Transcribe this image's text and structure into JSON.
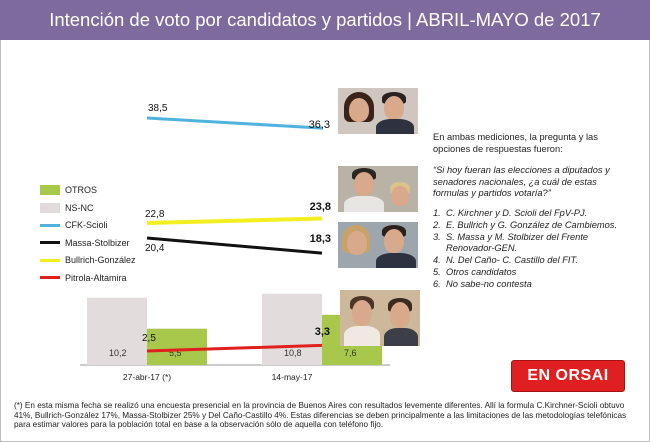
{
  "header": {
    "title": "Intención de voto por candidatos y partidos | ABRIL-MAYO de 2017"
  },
  "chart_data": {
    "type": "bar",
    "categories": [
      "27-abr-17 (*)",
      "14-may-17"
    ],
    "bar_series": [
      {
        "name": "NS-NC",
        "values": [
          10.2,
          10.8
        ],
        "color": "#e3dcdc"
      },
      {
        "name": "OTROS",
        "values": [
          5.5,
          7.6
        ],
        "color": "#a7c84a"
      }
    ],
    "line_series": [
      {
        "name": "CFK-Scioli",
        "values": [
          38.5,
          36.3
        ],
        "color": "#4fb3dd"
      },
      {
        "name": "Bullrich-González",
        "values": [
          22.8,
          23.8
        ],
        "color": "#f2ee1f"
      },
      {
        "name": "Massa-Stolbizer",
        "values": [
          20.4,
          18.3
        ],
        "color": "#111111"
      },
      {
        "name": "Pitrola-Altamira",
        "values": [
          2.5,
          3.3
        ],
        "color": "#e0201c"
      }
    ],
    "labels": {
      "ns_nc": [
        "10,2",
        "10,8"
      ],
      "otros": [
        "5,5",
        "7,6"
      ],
      "cfk": [
        "38,5",
        "36,3"
      ],
      "bullrich": [
        "22,8",
        "23,8"
      ],
      "massa": [
        "20,4",
        "18,3"
      ],
      "pitrola": [
        "2,5",
        "3,3"
      ]
    },
    "legend": [
      "OTROS",
      "NS-NC",
      "CFK-Scioli",
      "Massa-Stolbizer",
      "Bullrich-González",
      "Pitrola-Altamira"
    ],
    "legend_position": "left"
  },
  "photos": [
    {
      "name": "photo-kirchner-scioli"
    },
    {
      "name": "photo-bullrich-gonzalez"
    },
    {
      "name": "photo-massa-stolbizer"
    },
    {
      "name": "photo-delcano-castillo"
    }
  ],
  "right_panel": {
    "intro": "En ambas mediciones, la pregunta y las opciones de respuestas fueron:",
    "question": "“Si hoy fueran las elecciones a diputados y senadores nacionales, ¿a cuál de estas formulas y partidos votaría?”",
    "options": [
      {
        "num": "1.",
        "text": "C. Kirchner y D. Scioli del FpV-PJ."
      },
      {
        "num": "2.",
        "text": "E. Bullrich y G. González de Cambiemos."
      },
      {
        "num": "3.",
        "text": "S. Massa y M. Stolbizer del Frente Renovador-GEN."
      },
      {
        "num": "4.",
        "text": "N. Del Caño- C. Castillo del FIT."
      },
      {
        "num": "5.",
        "text": "Otros candidatos"
      },
      {
        "num": "6.",
        "text": "No sabe-no contesta"
      }
    ]
  },
  "logo": {
    "text": "EN ORSAI"
  },
  "footnote": "(*) En esta misma fecha se realizó una encuesta presencial en la provincia de Buenos Aires con resultados levemente diferentes. Allí la formula C.Kirchner-Scioli obtuvo 41%, Bullrich-González 17%, Massa-Stolbizer 25% y Del Caño-Castillo 4%. Estas diferencias se deben principalmente a las limitaciones de las metodologías telefónicas para estimar valores para la población total en base a la observación sólo de aquella con teléfono fijo."
}
